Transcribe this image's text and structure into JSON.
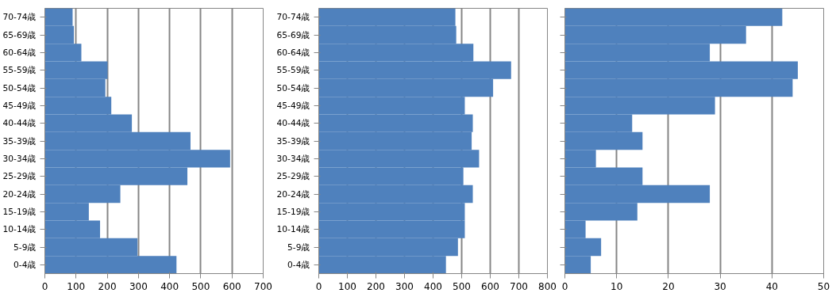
{
  "chart_data": [
    {
      "type": "bar",
      "orientation": "horizontal",
      "categories": [
        "70-74歳",
        "65-69歳",
        "60-64歳",
        "55-59歳",
        "50-54歳",
        "45-49歳",
        "40-44歳",
        "35-39歳",
        "30-34歳",
        "25-29歳",
        "20-24歳",
        "15-19歳",
        "10-14歳",
        "5-9歳",
        "0-4歳"
      ],
      "color": "#4f81bd",
      "values": [
        89,
        93,
        117,
        201,
        194,
        213,
        279,
        467,
        594,
        457,
        242,
        141,
        177,
        297,
        422
      ],
      "xlim": [
        0,
        700
      ],
      "xticks": [
        0,
        100,
        200,
        300,
        400,
        500,
        600,
        700
      ],
      "grid": "x"
    },
    {
      "type": "bar",
      "orientation": "horizontal",
      "categories": [
        "70-74歳",
        "65-69歳",
        "60-64歳",
        "55-59歳",
        "50-54歳",
        "45-49歳",
        "40-44歳",
        "35-39歳",
        "30-34歳",
        "25-29歳",
        "20-24歳",
        "15-19歳",
        "10-14歳",
        "5-9歳",
        "0-4歳"
      ],
      "color": "#4f81bd",
      "values": [
        478,
        481,
        541,
        673,
        610,
        511,
        539,
        535,
        561,
        506,
        539,
        511,
        511,
        487,
        445
      ],
      "xlim": [
        0,
        800
      ],
      "xticks": [
        0,
        100,
        200,
        300,
        400,
        500,
        600,
        700,
        800
      ],
      "grid": "x"
    },
    {
      "type": "bar",
      "orientation": "horizontal",
      "categories": [
        null,
        null,
        null,
        null,
        null,
        null,
        null,
        null,
        null,
        null,
        null,
        null,
        null,
        null,
        null
      ],
      "color": "#4f81bd",
      "values": [
        42,
        35,
        28,
        45,
        44,
        29,
        13,
        15,
        6,
        15,
        28,
        14,
        4,
        7,
        5
      ],
      "xlim": [
        0,
        50
      ],
      "xticks": [
        0,
        10,
        20,
        30,
        40,
        50
      ],
      "grid": "x",
      "tick_labels": "x"
    }
  ]
}
